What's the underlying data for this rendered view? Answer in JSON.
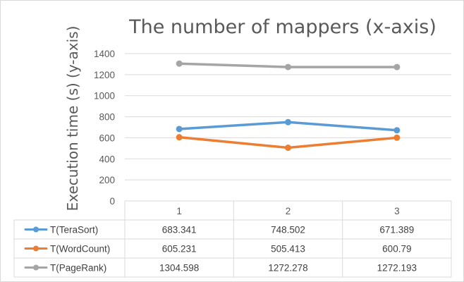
{
  "chart_data": {
    "type": "line",
    "title": "The number of mappers (x-axis)",
    "ylabel": "Execution time (s) (y-axis)",
    "categories": [
      "1",
      "2",
      "3"
    ],
    "ylim": [
      0,
      1400
    ],
    "yticks": [
      "0",
      "200",
      "400",
      "600",
      "800",
      "1000",
      "1200",
      "1400"
    ],
    "grid": true,
    "legend": "data-table",
    "series": [
      {
        "name": "T(TeraSort)",
        "values": [
          683.341,
          748.502,
          671.389
        ],
        "labels": [
          "683.341",
          "748.502",
          "671.389"
        ],
        "color": "#5b9bd5"
      },
      {
        "name": "T(WordCount)",
        "values": [
          605.231,
          505.413,
          600.79
        ],
        "labels": [
          "605.231",
          "505.413",
          "600.79"
        ],
        "color": "#ed7d31"
      },
      {
        "name": "T(PageRank)",
        "values": [
          1304.598,
          1272.278,
          1272.193
        ],
        "labels": [
          "1304.598",
          "1272.278",
          "1272.193"
        ],
        "color": "#a5a5a5"
      }
    ]
  }
}
